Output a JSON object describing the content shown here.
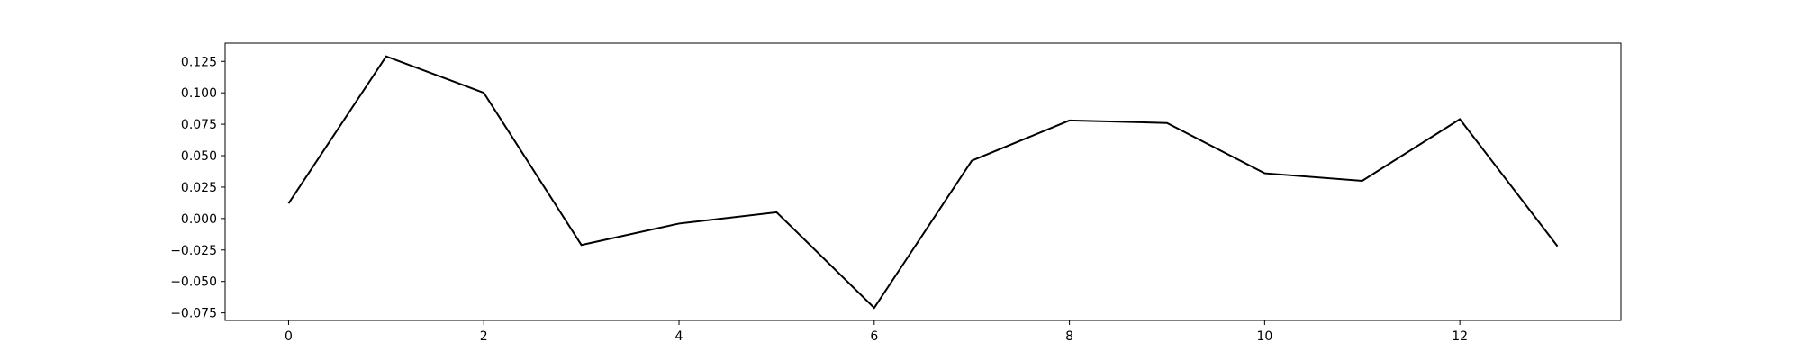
{
  "chart_data": {
    "type": "line",
    "title": "",
    "xlabel": "",
    "ylabel": "",
    "xlim": [
      -0.65,
      13.65
    ],
    "ylim": [
      -0.081,
      0.1395
    ],
    "grid": false,
    "x_ticks": [
      0,
      2,
      4,
      6,
      8,
      10,
      12
    ],
    "x_tick_labels": [
      "0",
      "2",
      "4",
      "6",
      "8",
      "10",
      "12"
    ],
    "y_ticks": [
      0.125,
      0.1,
      0.075,
      0.05,
      0.025,
      0.0,
      -0.025,
      -0.05,
      -0.075
    ],
    "y_tick_labels": [
      "0.125",
      "0.100",
      "0.075",
      "0.050",
      "0.025",
      "0.000",
      "−0.025",
      "−0.050",
      "−0.075"
    ],
    "series": [
      {
        "color": "#000000",
        "x": [
          0,
          1,
          2,
          3,
          4,
          5,
          6,
          7,
          8,
          9,
          10,
          11,
          12,
          13
        ],
        "values": [
          0.012,
          0.129,
          0.1,
          -0.021,
          -0.004,
          0.005,
          -0.071,
          0.046,
          0.078,
          0.076,
          0.036,
          0.03,
          0.079,
          -0.022
        ]
      }
    ]
  }
}
